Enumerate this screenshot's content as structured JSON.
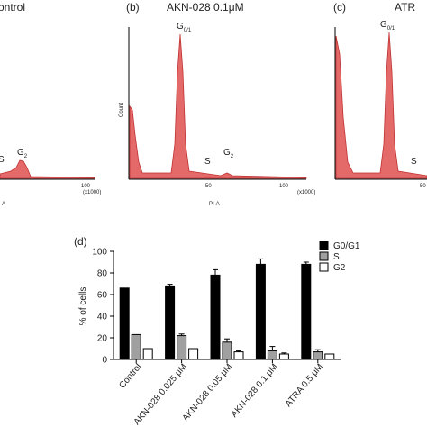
{
  "panels": [
    {
      "title": "ontrol",
      "peaks": [
        {
          "main": "S",
          "sub": ""
        },
        {
          "main": "G",
          "sub": "2"
        }
      ],
      "xticks": [
        "100"
      ],
      "xunit": "(x1000)",
      "xlabel": "A"
    },
    {
      "tag": "(b)",
      "title": "AKN-028 0.1μM",
      "ylabel": "Count",
      "peaks": [
        {
          "main": "G",
          "sub": "0/1"
        },
        {
          "main": "S",
          "sub": ""
        },
        {
          "main": "G",
          "sub": "2"
        }
      ],
      "xticks": [
        "50",
        "100"
      ],
      "xunit": "(x1000)",
      "xlabel": "PI-A"
    },
    {
      "tag": "(c)",
      "title": "ATR",
      "peaks": [
        {
          "main": "G",
          "sub": "0/1"
        },
        {
          "main": "S",
          "sub": ""
        }
      ],
      "xticks": [
        "50"
      ]
    }
  ],
  "chart_data": {
    "type": "bar",
    "tag": "(d)",
    "ylabel": "% of cells",
    "categories": [
      "Control",
      "AKN-028 0.025 μM",
      "AKN-028 0.05 μM",
      "AKN-028 0.1 μM",
      "ATRA 0.5 μM"
    ],
    "series": [
      {
        "name": "G0/G1",
        "color": "#000000",
        "values": [
          66,
          68,
          78,
          88,
          88
        ],
        "errors": [
          0,
          1.5,
          5,
          5,
          2
        ]
      },
      {
        "name": "S",
        "color": "#a0a0a0",
        "values": [
          23,
          22,
          16,
          8,
          7
        ],
        "errors": [
          0,
          1.5,
          3,
          4,
          2
        ]
      },
      {
        "name": "G2",
        "color": "#ffffff",
        "values": [
          10,
          10,
          7,
          5,
          5
        ],
        "errors": [
          0,
          0,
          1,
          1,
          0
        ]
      }
    ],
    "ylim": [
      0,
      100
    ],
    "yticks": [
      0,
      20,
      40,
      60,
      80,
      100
    ],
    "legend": "upper right"
  }
}
